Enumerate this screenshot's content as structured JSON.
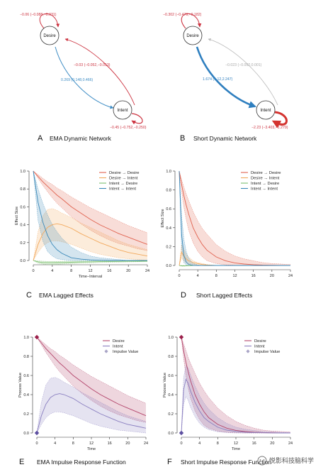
{
  "watermark": "悦影科技脑科学",
  "network_panels": [
    {
      "letter": "A",
      "caption": "EMA Dynamic Network",
      "nodes": [
        {
          "label": "Desire"
        },
        {
          "label": "Intent"
        }
      ],
      "edges": [
        {
          "from": "Desire",
          "to": "Desire",
          "label": "−0.06 (−0.088,−0.031)",
          "weight": -0.06,
          "color": "#cc3340"
        },
        {
          "from": "Intent",
          "to": "Desire",
          "label": "−0.03 (−0.052,−0.013)",
          "weight": -0.03,
          "color": "#cc3340"
        },
        {
          "from": "Desire",
          "to": "Intent",
          "label": "0.269 (0.148,0.466)",
          "weight": 0.269,
          "color": "#3d8cc4"
        },
        {
          "from": "Intent",
          "to": "Intent",
          "label": "−0.45 (−0.752,−0.250)",
          "weight": -0.45,
          "color": "#cc3340"
        }
      ]
    },
    {
      "letter": "B",
      "caption": "Short Dynamic Network",
      "nodes": [
        {
          "label": "Desire"
        },
        {
          "label": "Intent"
        }
      ],
      "edges": [
        {
          "from": "Desire",
          "to": "Desire",
          "label": "−0.302 (−0.476,−0.182)",
          "weight": -0.302,
          "color": "#cc3340"
        },
        {
          "from": "Intent",
          "to": "Desire",
          "label": "−0.023 (−0.052,0.001)",
          "weight": -0.023,
          "color": "#b8b8b8"
        },
        {
          "from": "Desire",
          "to": "Intent",
          "label": "1.674 (1.12,2.247)",
          "weight": 1.674,
          "color": "#2f7fbf"
        },
        {
          "from": "Intent",
          "to": "Intent",
          "label": "−2.23 (−3.403,−1.279)",
          "weight": -2.23,
          "color": "#d4332f"
        }
      ]
    }
  ],
  "chart_data": [
    {
      "panel": "C",
      "caption": "EMA Lagged Effects",
      "type": "line",
      "xlabel": "Time−Interval",
      "ylabel": "Effect Size",
      "xlim": [
        0,
        24
      ],
      "ylim": [
        0,
        1.0
      ],
      "xticks": [
        0,
        4,
        8,
        12,
        16,
        20,
        24
      ],
      "yticks": [
        0.0,
        0.2,
        0.4,
        0.6,
        0.8,
        1.0
      ],
      "legend": "top-right",
      "x": [
        0,
        1,
        2,
        3,
        4,
        5,
        6,
        8,
        10,
        12,
        14,
        16,
        18,
        20,
        22,
        24
      ],
      "series": [
        {
          "name": "Desire → Desire",
          "color": "#e0624f",
          "values": [
            1.0,
            0.94,
            0.88,
            0.83,
            0.78,
            0.73,
            0.69,
            0.6,
            0.53,
            0.46,
            0.4,
            0.35,
            0.3,
            0.26,
            0.22,
            0.18
          ],
          "lower": [
            1.0,
            0.92,
            0.84,
            0.77,
            0.7,
            0.64,
            0.59,
            0.49,
            0.41,
            0.34,
            0.28,
            0.23,
            0.19,
            0.16,
            0.13,
            0.11
          ],
          "upper": [
            1.0,
            0.96,
            0.92,
            0.88,
            0.85,
            0.81,
            0.78,
            0.71,
            0.65,
            0.59,
            0.54,
            0.49,
            0.44,
            0.39,
            0.35,
            0.31
          ]
        },
        {
          "name": "Desire → Intent",
          "color": "#f2a85c",
          "values": [
            0.0,
            0.18,
            0.3,
            0.37,
            0.4,
            0.41,
            0.4,
            0.36,
            0.3,
            0.25,
            0.2,
            0.16,
            0.12,
            0.09,
            0.07,
            0.05
          ],
          "lower": [
            0.0,
            0.09,
            0.16,
            0.2,
            0.22,
            0.22,
            0.21,
            0.18,
            0.14,
            0.1,
            0.07,
            0.05,
            0.03,
            0.02,
            0.01,
            0.0
          ],
          "upper": [
            0.0,
            0.32,
            0.5,
            0.57,
            0.58,
            0.56,
            0.53,
            0.48,
            0.42,
            0.37,
            0.32,
            0.27,
            0.22,
            0.18,
            0.15,
            0.12
          ]
        },
        {
          "name": "Intent → Desire",
          "color": "#7bbf6e",
          "values": [
            0.0,
            -0.015,
            -0.022,
            -0.025,
            -0.025,
            -0.024,
            -0.022,
            -0.02,
            -0.017,
            -0.015,
            -0.013,
            -0.011,
            -0.01,
            -0.009,
            -0.008,
            -0.007
          ],
          "lower": [
            0.0,
            -0.03,
            -0.04,
            -0.045,
            -0.045,
            -0.043,
            -0.04,
            -0.035,
            -0.03,
            -0.026,
            -0.023,
            -0.02,
            -0.018,
            -0.016,
            -0.014,
            -0.012
          ],
          "upper": [
            0.0,
            -0.005,
            -0.008,
            -0.01,
            -0.01,
            -0.01,
            -0.009,
            -0.008,
            -0.007,
            -0.006,
            -0.005,
            -0.004,
            -0.004,
            -0.003,
            -0.003,
            -0.002
          ]
        },
        {
          "name": "Intent → Intent",
          "color": "#3a88b8",
          "values": [
            1.0,
            0.65,
            0.43,
            0.28,
            0.18,
            0.12,
            0.08,
            0.03,
            0.015,
            0.006,
            0.002,
            0.0,
            0.0,
            0.0,
            0.0,
            0.0
          ],
          "lower": [
            1.0,
            0.45,
            0.22,
            0.1,
            0.05,
            0.02,
            0.01,
            0.0,
            0.0,
            0.0,
            0.0,
            0.0,
            0.0,
            0.0,
            0.0,
            0.0
          ],
          "upper": [
            1.0,
            0.8,
            0.64,
            0.51,
            0.4,
            0.32,
            0.25,
            0.15,
            0.09,
            0.05,
            0.03,
            0.02,
            0.01,
            0.0,
            0.0,
            0.0
          ]
        }
      ]
    },
    {
      "panel": "D",
      "caption": "Short Lagged Effects",
      "type": "line",
      "xlabel": "",
      "ylabel": "Effect Size",
      "xlim": [
        0,
        24
      ],
      "ylim": [
        0,
        1.0
      ],
      "xticks": [
        0,
        4,
        8,
        12,
        16,
        20,
        24
      ],
      "yticks": [
        0.0,
        0.2,
        0.4,
        0.6,
        0.8,
        1.0
      ],
      "legend": "top-right",
      "x": [
        0,
        0.5,
        1,
        1.5,
        2,
        3,
        4,
        5,
        6,
        8,
        10,
        12,
        14,
        16,
        18,
        20,
        22,
        24
      ],
      "series": [
        {
          "name": "Desire → Desire",
          "color": "#e0624f",
          "values": [
            1.0,
            0.86,
            0.74,
            0.64,
            0.55,
            0.4,
            0.3,
            0.22,
            0.16,
            0.09,
            0.05,
            0.027,
            0.015,
            0.008,
            0.004,
            0.002,
            0.001,
            0.0
          ],
          "lower": [
            1.0,
            0.79,
            0.62,
            0.49,
            0.38,
            0.24,
            0.15,
            0.09,
            0.05,
            0.02,
            0.007,
            0.002,
            0.0,
            0.0,
            0.0,
            0.0,
            0.0,
            0.0
          ],
          "upper": [
            1.0,
            0.91,
            0.83,
            0.76,
            0.69,
            0.57,
            0.47,
            0.39,
            0.33,
            0.22,
            0.15,
            0.1,
            0.07,
            0.05,
            0.03,
            0.02,
            0.015,
            0.01
          ]
        },
        {
          "name": "Desire → Intent",
          "color": "#f2a85c",
          "values": [
            0.0,
            0.14,
            0.1,
            0.07,
            0.05,
            0.03,
            0.02,
            0.01,
            0.005,
            0.0,
            0.0,
            0.0,
            0.0,
            0.0,
            0.0,
            0.0,
            0.0,
            0.0
          ],
          "lower": [
            0.0,
            0.08,
            0.05,
            0.03,
            0.02,
            0.01,
            0.005,
            0.0,
            0.0,
            0.0,
            0.0,
            0.0,
            0.0,
            0.0,
            0.0,
            0.0,
            0.0,
            0.0
          ],
          "upper": [
            0.0,
            0.22,
            0.17,
            0.12,
            0.09,
            0.05,
            0.03,
            0.02,
            0.01,
            0.0,
            0.0,
            0.0,
            0.0,
            0.0,
            0.0,
            0.0,
            0.0,
            0.0
          ]
        },
        {
          "name": "Intent → Desire",
          "color": "#7bbf6e",
          "values": [
            0.0,
            -0.004,
            -0.004,
            -0.003,
            -0.002,
            -0.001,
            0.0,
            0.0,
            0.0,
            0.0,
            0.0,
            0.0,
            0.0,
            0.0,
            0.0,
            0.0,
            0.0,
            0.0
          ],
          "lower": [
            0.0,
            -0.008,
            -0.008,
            -0.006,
            -0.004,
            -0.002,
            0.0,
            0.0,
            0.0,
            0.0,
            0.0,
            0.0,
            0.0,
            0.0,
            0.0,
            0.0,
            0.0,
            0.0
          ],
          "upper": [
            0.0,
            0.0,
            0.0,
            0.0,
            0.0,
            0.0,
            0.0,
            0.0,
            0.0,
            0.0,
            0.0,
            0.0,
            0.0,
            0.0,
            0.0,
            0.0,
            0.0,
            0.0
          ]
        },
        {
          "name": "Intent → Intent",
          "color": "#3a88b8",
          "values": [
            1.0,
            0.33,
            0.11,
            0.035,
            0.012,
            0.001,
            0.0,
            0.0,
            0.0,
            0.0,
            0.0,
            0.0,
            0.0,
            0.0,
            0.0,
            0.0,
            0.0,
            0.0
          ],
          "lower": [
            1.0,
            0.18,
            0.03,
            0.005,
            0.0,
            0.0,
            0.0,
            0.0,
            0.0,
            0.0,
            0.0,
            0.0,
            0.0,
            0.0,
            0.0,
            0.0,
            0.0,
            0.0
          ],
          "upper": [
            1.0,
            0.53,
            0.28,
            0.15,
            0.08,
            0.02,
            0.005,
            0.0,
            0.0,
            0.0,
            0.0,
            0.0,
            0.0,
            0.0,
            0.0,
            0.0,
            0.0,
            0.0
          ]
        }
      ]
    },
    {
      "panel": "E",
      "caption": "EMA Impulse Response Function",
      "type": "line",
      "xlabel": "Time",
      "ylabel": "Process Value",
      "xlim": [
        0,
        24
      ],
      "ylim": [
        0,
        1.0
      ],
      "xticks": [
        0,
        4,
        8,
        12,
        16,
        20,
        24
      ],
      "yticks": [
        0.0,
        0.2,
        0.4,
        0.6,
        0.8,
        1.0
      ],
      "legend": "top-right",
      "impulse_name": "Impulse Value",
      "impulse_color": "#a9a4c6",
      "impulse_points": [
        {
          "series": "Desire",
          "x": 0,
          "y": 1.0,
          "color": "#9b1f4a"
        },
        {
          "series": "Intent",
          "x": 0,
          "y": 0.0,
          "color": "#5d4fa0"
        }
      ],
      "x": [
        0,
        1,
        2,
        3,
        4,
        5,
        6,
        8,
        10,
        12,
        14,
        16,
        18,
        20,
        22,
        24
      ],
      "series": [
        {
          "name": "Desire",
          "color": "#b3456b",
          "values": [
            1.0,
            0.94,
            0.88,
            0.83,
            0.78,
            0.73,
            0.69,
            0.6,
            0.53,
            0.46,
            0.4,
            0.35,
            0.3,
            0.26,
            0.22,
            0.18
          ],
          "lower": [
            1.0,
            0.92,
            0.84,
            0.77,
            0.7,
            0.64,
            0.59,
            0.49,
            0.41,
            0.34,
            0.28,
            0.23,
            0.19,
            0.16,
            0.13,
            0.11
          ],
          "upper": [
            1.0,
            0.96,
            0.92,
            0.88,
            0.85,
            0.81,
            0.78,
            0.71,
            0.65,
            0.59,
            0.54,
            0.49,
            0.44,
            0.39,
            0.35,
            0.31
          ]
        },
        {
          "name": "Intent",
          "color": "#8a7fc0",
          "values": [
            0.0,
            0.18,
            0.3,
            0.37,
            0.4,
            0.41,
            0.4,
            0.36,
            0.3,
            0.25,
            0.2,
            0.16,
            0.12,
            0.09,
            0.07,
            0.05
          ],
          "lower": [
            0.0,
            0.09,
            0.16,
            0.2,
            0.22,
            0.22,
            0.21,
            0.18,
            0.14,
            0.1,
            0.07,
            0.05,
            0.03,
            0.02,
            0.01,
            0.0
          ],
          "upper": [
            0.0,
            0.32,
            0.5,
            0.57,
            0.58,
            0.56,
            0.53,
            0.48,
            0.42,
            0.37,
            0.32,
            0.27,
            0.22,
            0.18,
            0.15,
            0.12
          ]
        }
      ]
    },
    {
      "panel": "F",
      "caption": "Short Impulse Response Function",
      "type": "line",
      "xlabel": "Time",
      "ylabel": "Process Value",
      "xlim": [
        0,
        24
      ],
      "ylim": [
        0,
        1.0
      ],
      "xticks": [
        0,
        4,
        8,
        12,
        16,
        20,
        24
      ],
      "yticks": [
        0.0,
        0.2,
        0.4,
        0.6,
        0.8,
        1.0
      ],
      "legend": "top-right",
      "impulse_name": "Impulse Value",
      "impulse_color": "#a9a4c6",
      "impulse_points": [
        {
          "series": "Desire",
          "x": 0,
          "y": 1.0,
          "color": "#9b1f4a"
        },
        {
          "series": "Intent",
          "x": 0,
          "y": 0.0,
          "color": "#5d4fa0"
        }
      ],
      "x": [
        0,
        0.5,
        1,
        1.5,
        2,
        3,
        4,
        5,
        6,
        8,
        10,
        12,
        14,
        16,
        18,
        20,
        22,
        24
      ],
      "series": [
        {
          "name": "Desire",
          "color": "#b3456b",
          "values": [
            1.0,
            0.86,
            0.74,
            0.64,
            0.55,
            0.4,
            0.3,
            0.22,
            0.16,
            0.09,
            0.05,
            0.027,
            0.015,
            0.008,
            0.004,
            0.002,
            0.001,
            0.0
          ],
          "lower": [
            1.0,
            0.78,
            0.6,
            0.47,
            0.37,
            0.23,
            0.14,
            0.08,
            0.05,
            0.02,
            0.007,
            0.002,
            0.0,
            0.0,
            0.0,
            0.0,
            0.0,
            0.0
          ],
          "upper": [
            1.0,
            0.93,
            0.86,
            0.79,
            0.73,
            0.62,
            0.52,
            0.44,
            0.37,
            0.26,
            0.18,
            0.12,
            0.08,
            0.05,
            0.03,
            0.02,
            0.015,
            0.01
          ]
        },
        {
          "name": "Intent",
          "color": "#8a7fc0",
          "values": [
            0.0,
            0.45,
            0.56,
            0.52,
            0.44,
            0.32,
            0.23,
            0.16,
            0.12,
            0.06,
            0.03,
            0.016,
            0.008,
            0.004,
            0.002,
            0.001,
            0.0,
            0.0
          ],
          "lower": [
            0.0,
            0.3,
            0.38,
            0.34,
            0.27,
            0.17,
            0.1,
            0.06,
            0.035,
            0.012,
            0.004,
            0.0,
            0.0,
            0.0,
            0.0,
            0.0,
            0.0,
            0.0
          ],
          "upper": [
            0.0,
            0.58,
            0.7,
            0.68,
            0.61,
            0.49,
            0.39,
            0.31,
            0.25,
            0.16,
            0.1,
            0.06,
            0.04,
            0.025,
            0.015,
            0.01,
            0.006,
            0.004
          ]
        }
      ]
    }
  ]
}
